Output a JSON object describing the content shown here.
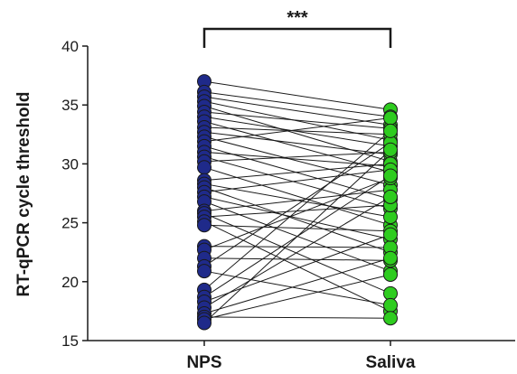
{
  "chart_data": {
    "type": "scatter",
    "subtype": "paired-dot-plot",
    "categories": [
      "NPS",
      "Saliva"
    ],
    "ylabel": "RT-qPCR cycle threshold",
    "xlabel": "",
    "ylim": [
      15,
      40
    ],
    "yticks": [
      "15",
      "20",
      "25",
      "30",
      "35",
      "40"
    ],
    "significance": "***",
    "colors": {
      "NPS": "#1f2a8a",
      "Saliva": "#2ecc1f",
      "marker_edge": "#1a1a1a",
      "line": "#1a1a1a"
    },
    "pairs": [
      [
        37.0,
        34.6
      ],
      [
        36.1,
        34.0
      ],
      [
        35.7,
        33.3
      ],
      [
        35.3,
        32.0
      ],
      [
        34.9,
        30.2
      ],
      [
        34.4,
        33.0
      ],
      [
        34.0,
        31.5
      ],
      [
        33.6,
        29.3
      ],
      [
        33.1,
        32.5
      ],
      [
        32.7,
        30.8
      ],
      [
        32.3,
        28.2
      ],
      [
        31.9,
        33.9
      ],
      [
        31.5,
        27.0
      ],
      [
        31.0,
        29.8
      ],
      [
        30.6,
        26.2
      ],
      [
        30.2,
        31.0
      ],
      [
        29.7,
        24.8
      ],
      [
        28.6,
        30.0
      ],
      [
        28.3,
        25.5
      ],
      [
        28.0,
        22.5
      ],
      [
        27.6,
        29.5
      ],
      [
        27.2,
        23.6
      ],
      [
        26.8,
        20.9
      ],
      [
        26.0,
        27.8
      ],
      [
        25.8,
        19.0
      ],
      [
        25.5,
        26.5
      ],
      [
        25.1,
        17.5
      ],
      [
        24.8,
        24.3
      ],
      [
        23.0,
        22.9
      ],
      [
        22.7,
        28.8
      ],
      [
        22.0,
        21.8
      ],
      [
        21.3,
        31.8
      ],
      [
        20.9,
        18.0
      ],
      [
        19.3,
        32.8
      ],
      [
        18.7,
        29.0
      ],
      [
        18.3,
        24.0
      ],
      [
        17.8,
        27.2
      ],
      [
        17.3,
        22.0
      ],
      [
        17.0,
        16.9
      ],
      [
        16.8,
        20.6
      ],
      [
        16.5,
        31.2
      ]
    ]
  }
}
